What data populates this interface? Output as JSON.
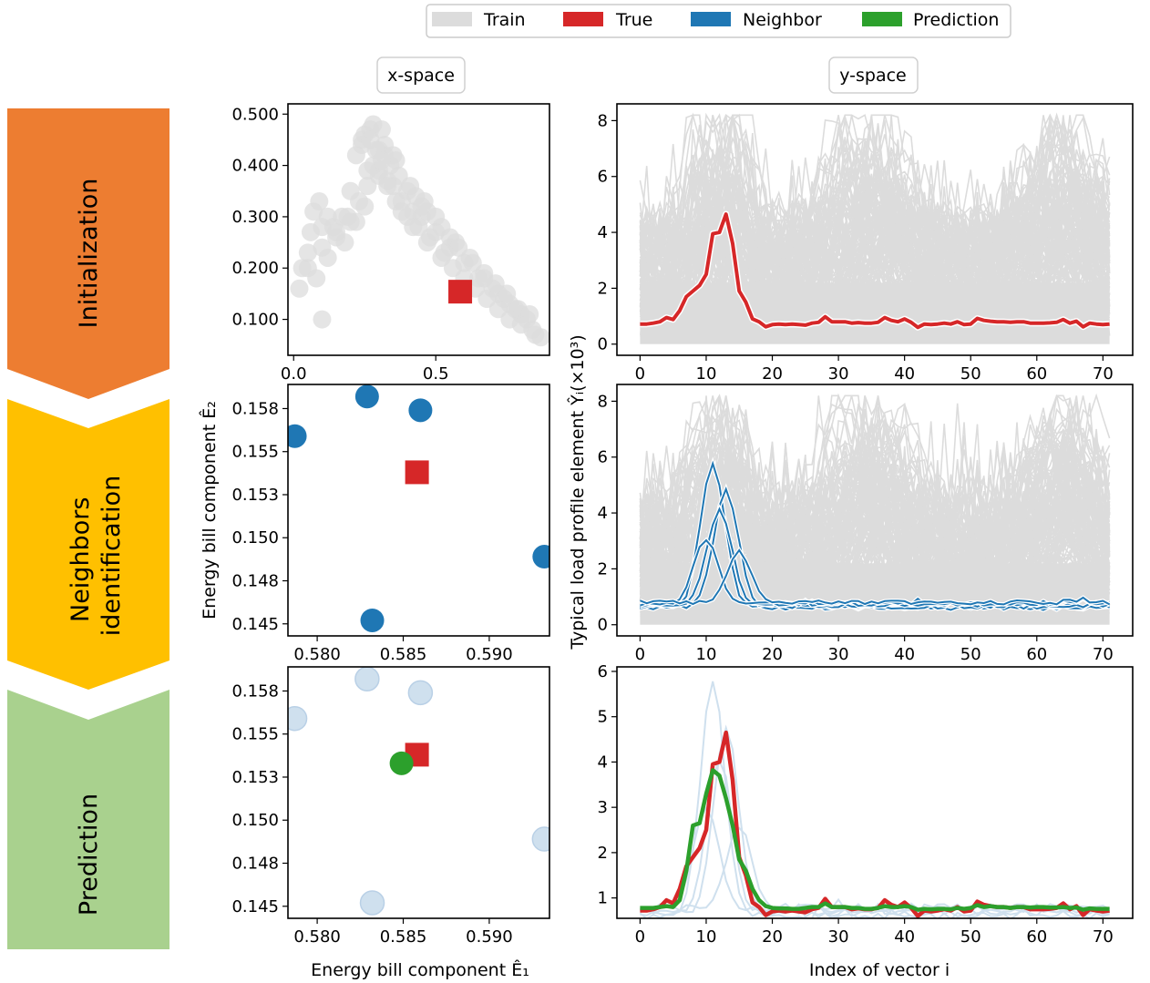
{
  "legend": {
    "items": [
      {
        "label": "Train",
        "color": "#dcdcdc"
      },
      {
        "label": "True",
        "color": "#d62728"
      },
      {
        "label": "Neighbor",
        "color": "#1f77b4"
      },
      {
        "label": "Prediction",
        "color": "#2ca02c"
      }
    ]
  },
  "column_headers": {
    "x_space": "x-space",
    "y_space": "y-space"
  },
  "stages": [
    {
      "label": "Initialization",
      "color": "#ed7d31"
    },
    {
      "label": "Neighbors\nidentification",
      "color": "#ffc000"
    },
    {
      "label": "Prediction",
      "color": "#a9d18e"
    }
  ],
  "axes_text": {
    "x_space_xlabel": "Energy bill component Ê₁",
    "x_space_ylabel": "Energy bill component Ê₂",
    "y_space_xlabel": "Index of vector i",
    "y_space_ylabel": "Typical load profile element Ŷᵢ(×10³)"
  },
  "chart_data": [
    {
      "panel": "x-space initialization",
      "type": "scatter",
      "xlim": [
        -0.02,
        0.9
      ],
      "ylim": [
        0.03,
        0.52
      ],
      "xticks": [
        "0.0",
        "0.5"
      ],
      "yticks": [
        "0.100",
        "0.200",
        "0.300",
        "0.400",
        "0.500"
      ],
      "series": [
        {
          "name": "Train",
          "color": "#dcdcdc",
          "x": [
            0.02,
            0.03,
            0.05,
            0.06,
            0.07,
            0.09,
            0.1,
            0.12,
            0.15,
            0.17,
            0.2,
            0.22,
            0.24,
            0.25,
            0.27,
            0.28,
            0.3,
            0.31,
            0.32,
            0.34,
            0.35,
            0.37,
            0.38,
            0.4,
            0.42,
            0.43,
            0.45,
            0.47,
            0.5,
            0.52,
            0.55,
            0.57,
            0.6,
            0.62,
            0.65,
            0.67,
            0.7,
            0.72,
            0.74,
            0.76,
            0.78,
            0.8,
            0.82,
            0.84,
            0.85,
            0.87,
            0.08,
            0.12,
            0.18,
            0.22,
            0.26,
            0.3,
            0.33,
            0.36,
            0.4,
            0.44,
            0.48,
            0.52,
            0.56,
            0.6,
            0.64,
            0.68,
            0.72,
            0.76,
            0.8,
            0.05,
            0.1,
            0.14,
            0.19,
            0.23,
            0.28,
            0.32,
            0.36,
            0.41,
            0.46,
            0.5,
            0.55,
            0.58,
            0.63,
            0.67,
            0.71,
            0.75,
            0.79,
            0.83,
            0.1,
            0.15,
            0.2,
            0.25,
            0.3,
            0.35,
            0.24,
            0.27,
            0.29,
            0.31,
            0.26,
            0.33,
            0.38,
            0.42,
            0.47,
            0.53,
            0.45
          ],
          "y": [
            0.16,
            0.2,
            0.23,
            0.27,
            0.31,
            0.33,
            0.28,
            0.3,
            0.26,
            0.3,
            0.35,
            0.42,
            0.45,
            0.46,
            0.47,
            0.48,
            0.43,
            0.47,
            0.42,
            0.4,
            0.36,
            0.38,
            0.33,
            0.35,
            0.31,
            0.34,
            0.3,
            0.31,
            0.27,
            0.28,
            0.24,
            0.25,
            0.21,
            0.22,
            0.18,
            0.19,
            0.16,
            0.15,
            0.14,
            0.13,
            0.12,
            0.11,
            0.1,
            0.08,
            0.07,
            0.065,
            0.18,
            0.22,
            0.25,
            0.29,
            0.36,
            0.39,
            0.37,
            0.33,
            0.3,
            0.28,
            0.26,
            0.22,
            0.2,
            0.18,
            0.16,
            0.14,
            0.12,
            0.1,
            0.09,
            0.2,
            0.24,
            0.28,
            0.3,
            0.33,
            0.4,
            0.44,
            0.41,
            0.36,
            0.33,
            0.3,
            0.26,
            0.24,
            0.21,
            0.18,
            0.17,
            0.15,
            0.12,
            0.11,
            0.1,
            0.27,
            0.29,
            0.32,
            0.38,
            0.42,
            0.44,
            0.45,
            0.43,
            0.41,
            0.39,
            0.36,
            0.31,
            0.28,
            0.25,
            0.23,
            0.32
          ]
        },
        {
          "name": "True",
          "color": "#d62728",
          "x": [
            0.586
          ],
          "y": [
            0.154
          ],
          "marker": "square"
        }
      ]
    },
    {
      "panel": "x-space neighbors",
      "type": "scatter",
      "xlim": [
        0.5783,
        0.5935
      ],
      "ylim": [
        0.1443,
        0.1589
      ],
      "xticks": [
        "0.580",
        "0.585",
        "0.590"
      ],
      "yticks": [
        "0.145",
        "0.148",
        "0.150",
        "0.153",
        "0.155",
        "0.158"
      ],
      "series": [
        {
          "name": "Neighbor",
          "color": "#1f77b4",
          "x": [
            0.5787,
            0.5829,
            0.586,
            0.5932,
            0.5832
          ],
          "y": [
            0.1559,
            0.1582,
            0.1574,
            0.1489,
            0.1452
          ]
        },
        {
          "name": "True",
          "color": "#d62728",
          "x": [
            0.5858
          ],
          "y": [
            0.1538
          ],
          "marker": "square"
        }
      ]
    },
    {
      "panel": "x-space prediction",
      "type": "scatter",
      "xlim": [
        0.5783,
        0.5935
      ],
      "ylim": [
        0.1443,
        0.1589
      ],
      "xticks": [
        "0.580",
        "0.585",
        "0.590"
      ],
      "yticks": [
        "0.145",
        "0.148",
        "0.150",
        "0.153",
        "0.155",
        "0.158"
      ],
      "series": [
        {
          "name": "Neighbor",
          "color": "#cfe0ee",
          "x": [
            0.5787,
            0.5829,
            0.586,
            0.5932,
            0.5832
          ],
          "y": [
            0.1559,
            0.1582,
            0.1574,
            0.1489,
            0.1452
          ]
        },
        {
          "name": "True",
          "color": "#d62728",
          "x": [
            0.5858
          ],
          "y": [
            0.1538
          ],
          "marker": "square"
        },
        {
          "name": "Prediction",
          "color": "#2ca02c",
          "x": [
            0.5849
          ],
          "y": [
            0.1533
          ]
        }
      ]
    },
    {
      "panel": "y-space initialization",
      "type": "line",
      "xlim": [
        -3.5,
        74.5
      ],
      "ylim": [
        -0.4,
        8.6
      ],
      "xticks": [
        "0",
        "10",
        "20",
        "30",
        "40",
        "50",
        "60",
        "70"
      ],
      "yticks": [
        "0",
        "2",
        "4",
        "6",
        "8"
      ],
      "series": [
        {
          "name": "True",
          "color": "#d62728",
          "x": [
            0,
            1,
            2,
            3,
            4,
            5,
            6,
            7,
            8,
            9,
            10,
            11,
            12,
            13,
            14,
            15,
            16,
            17,
            18,
            19,
            20,
            21,
            22,
            23,
            24,
            25,
            26,
            27,
            28,
            29,
            30,
            31,
            32,
            33,
            34,
            35,
            36,
            37,
            38,
            39,
            40,
            41,
            42,
            43,
            44,
            45,
            46,
            47,
            48,
            49,
            50,
            51,
            52,
            53,
            54,
            55,
            56,
            57,
            58,
            59,
            60,
            61,
            62,
            63,
            64,
            65,
            66,
            67,
            68,
            69,
            70,
            71
          ],
          "y": [
            0.72,
            0.72,
            0.75,
            0.8,
            0.95,
            0.88,
            1.2,
            1.7,
            1.9,
            2.1,
            2.5,
            3.95,
            4.0,
            4.65,
            3.6,
            1.9,
            1.5,
            0.9,
            0.8,
            0.62,
            0.7,
            0.72,
            0.7,
            0.72,
            0.7,
            0.68,
            0.75,
            0.78,
            0.98,
            0.8,
            0.8,
            0.8,
            0.75,
            0.77,
            0.75,
            0.75,
            0.78,
            0.95,
            0.85,
            0.8,
            0.9,
            0.78,
            0.6,
            0.72,
            0.7,
            0.72,
            0.75,
            0.72,
            0.8,
            0.7,
            0.72,
            0.92,
            0.85,
            0.82,
            0.8,
            0.8,
            0.78,
            0.8,
            0.8,
            0.75,
            0.75,
            0.75,
            0.76,
            0.78,
            0.88,
            0.75,
            0.82,
            0.62,
            0.75,
            0.72,
            0.7,
            0.72
          ]
        }
      ]
    },
    {
      "panel": "y-space neighbors",
      "type": "line",
      "xlim": [
        -3.5,
        74.5
      ],
      "ylim": [
        -0.4,
        8.6
      ],
      "xticks": [
        "0",
        "10",
        "20",
        "30",
        "40",
        "50",
        "60",
        "70"
      ],
      "yticks": [
        "0",
        "2",
        "4",
        "6",
        "8"
      ],
      "series": [
        {
          "name": "Neighbor 1",
          "color": "#1f77b4",
          "peak_index": 11,
          "peak_value": 5.85
        },
        {
          "name": "Neighbor 2",
          "color": "#1f77b4",
          "peak_index": 13,
          "peak_value": 4.85
        },
        {
          "name": "Neighbor 3",
          "color": "#1f77b4",
          "peak_index": 12,
          "peak_value": 4.1
        },
        {
          "name": "Neighbor 4",
          "color": "#1f77b4",
          "peak_index": 10,
          "peak_value": 3.0
        },
        {
          "name": "Neighbor 5",
          "color": "#1f77b4",
          "peak_index": 15,
          "peak_value": 2.5
        }
      ]
    },
    {
      "panel": "y-space prediction",
      "type": "line",
      "xlim": [
        -3.5,
        74.5
      ],
      "ylim": [
        0.55,
        6.1
      ],
      "xticks": [
        "0",
        "10",
        "20",
        "30",
        "40",
        "50",
        "60",
        "70"
      ],
      "yticks": [
        "1",
        "2",
        "3",
        "4",
        "5",
        "6"
      ],
      "series": [
        {
          "name": "Prediction",
          "color": "#2ca02c",
          "x": [
            0,
            1,
            2,
            3,
            4,
            5,
            6,
            7,
            8,
            9,
            10,
            11,
            12,
            13,
            14,
            15,
            16,
            17,
            18,
            19,
            20,
            21,
            22,
            23,
            24,
            25,
            26,
            27,
            28,
            29,
            30,
            31,
            32,
            33,
            34,
            35,
            36,
            37,
            38,
            39,
            40,
            41,
            42,
            43,
            44,
            45,
            46,
            47,
            48,
            49,
            50,
            51,
            52,
            53,
            54,
            55,
            56,
            57,
            58,
            59,
            60,
            61,
            62,
            63,
            64,
            65,
            66,
            67,
            68,
            69,
            70,
            71
          ],
          "y": [
            0.78,
            0.78,
            0.78,
            0.8,
            0.82,
            0.8,
            0.95,
            1.6,
            2.6,
            2.65,
            3.3,
            3.82,
            3.7,
            3.2,
            2.6,
            1.85,
            1.6,
            1.2,
            0.95,
            0.82,
            0.78,
            0.77,
            0.77,
            0.76,
            0.76,
            0.78,
            0.8,
            0.8,
            0.88,
            0.8,
            0.8,
            0.8,
            0.78,
            0.78,
            0.76,
            0.76,
            0.78,
            0.82,
            0.8,
            0.8,
            0.82,
            0.8,
            0.74,
            0.76,
            0.75,
            0.76,
            0.76,
            0.75,
            0.78,
            0.76,
            0.78,
            0.84,
            0.8,
            0.82,
            0.8,
            0.8,
            0.78,
            0.8,
            0.8,
            0.79,
            0.8,
            0.8,
            0.79,
            0.79,
            0.8,
            0.78,
            0.79,
            0.74,
            0.77,
            0.76,
            0.76,
            0.76
          ]
        }
      ]
    }
  ]
}
